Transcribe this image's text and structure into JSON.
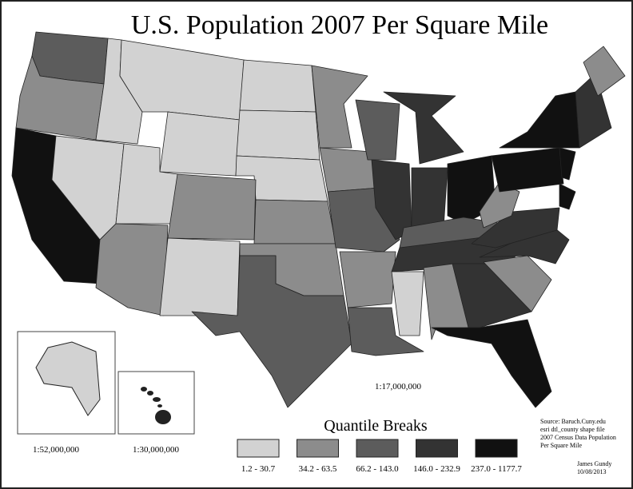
{
  "title": "U.S. Population 2007 Per Square Mile",
  "main_scale": "1:17,000,000",
  "alaska_scale": "1:52,000,000",
  "hawaii_scale": "1:30,000,000",
  "legend": {
    "title": "Quantile Breaks",
    "classes": [
      {
        "label": "1.2 - 30.7",
        "color": "#d2d2d2"
      },
      {
        "label": "34.2 - 63.5",
        "color": "#8c8c8c"
      },
      {
        "label": "66.2 - 143.0",
        "color": "#5c5c5c"
      },
      {
        "label": "146.0 - 232.9",
        "color": "#333333"
      },
      {
        "label": "237.0 - 1177.7",
        "color": "#111111"
      }
    ]
  },
  "source": [
    "Source: Baruch.Cuny.edu",
    "esri dtl_county shape file",
    "2007 Census Data Population",
    "Per Square Mile"
  ],
  "author": [
    "James Gundy",
    "10/08/2013"
  ]
}
